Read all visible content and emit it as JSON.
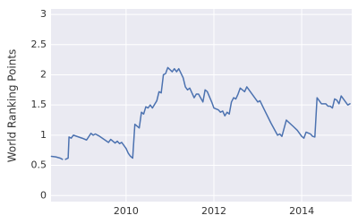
{
  "chart_data": {
    "type": "line",
    "ylabel": "World Ranking Points",
    "color": "#4c72b0",
    "grid": true,
    "xlim": [
      2008.29,
      2015.14
    ],
    "xticks": [
      2010,
      2012,
      2014
    ],
    "ylim": [
      -0.1,
      3.09
    ],
    "yticks": [
      0,
      0.5,
      1,
      1.5,
      2,
      2.5,
      3
    ],
    "x": [
      2008.3,
      2008.4,
      2008.5,
      2008.55,
      2008.58,
      2008.62,
      2008.68,
      2008.7,
      2008.75,
      2008.8,
      2009.0,
      2009.1,
      2009.2,
      2009.25,
      2009.3,
      2009.4,
      2009.5,
      2009.6,
      2009.65,
      2009.75,
      2009.8,
      2009.85,
      2009.9,
      2010.0,
      2010.05,
      2010.1,
      2010.15,
      2010.2,
      2010.3,
      2010.35,
      2010.4,
      2010.45,
      2010.5,
      2010.55,
      2010.6,
      2010.7,
      2010.75,
      2010.8,
      2010.85,
      2010.9,
      2010.95,
      2011.05,
      2011.1,
      2011.15,
      2011.2,
      2011.3,
      2011.35,
      2011.4,
      2011.45,
      2011.55,
      2011.6,
      2011.65,
      2011.75,
      2011.8,
      2011.85,
      2011.95,
      2012.0,
      2012.1,
      2012.15,
      2012.2,
      2012.25,
      2012.3,
      2012.35,
      2012.4,
      2012.45,
      2012.5,
      2012.55,
      2012.6,
      2012.7,
      2012.75,
      2012.9,
      2013.0,
      2013.05,
      2013.15,
      2013.3,
      2013.45,
      2013.5,
      2013.55,
      2013.65,
      2013.8,
      2013.9,
      2014.0,
      2014.05,
      2014.1,
      2014.2,
      2014.25,
      2014.3,
      2014.35,
      2014.45,
      2014.55,
      2014.6,
      2014.65,
      2014.7,
      2014.75,
      2014.8,
      2014.85,
      2014.9,
      2015.0,
      2015.05,
      2015.1
    ],
    "values": [
      0.65,
      0.64,
      0.62,
      0.6,
      null,
      0.6,
      0.62,
      0.97,
      0.95,
      1.0,
      0.95,
      0.92,
      1.03,
      1.0,
      1.02,
      0.98,
      0.93,
      0.88,
      0.93,
      0.87,
      0.9,
      0.86,
      0.88,
      0.78,
      0.7,
      0.65,
      0.62,
      1.18,
      1.12,
      1.38,
      1.35,
      1.47,
      1.45,
      1.5,
      1.45,
      1.57,
      1.72,
      1.7,
      2.0,
      2.02,
      2.12,
      2.05,
      2.1,
      2.05,
      2.1,
      1.95,
      1.8,
      1.75,
      1.78,
      1.62,
      1.68,
      1.68,
      1.55,
      1.75,
      1.72,
      1.55,
      1.45,
      1.42,
      1.38,
      1.4,
      1.32,
      1.38,
      1.35,
      1.55,
      1.62,
      1.6,
      1.68,
      1.78,
      1.72,
      1.8,
      1.65,
      1.55,
      1.57,
      1.42,
      1.2,
      1.0,
      1.02,
      0.98,
      1.25,
      1.15,
      1.08,
      0.98,
      0.95,
      1.05,
      1.02,
      0.98,
      0.97,
      1.62,
      1.52,
      1.52,
      1.48,
      1.48,
      1.45,
      1.6,
      1.58,
      1.52,
      1.65,
      1.55,
      1.5,
      1.52
    ]
  }
}
